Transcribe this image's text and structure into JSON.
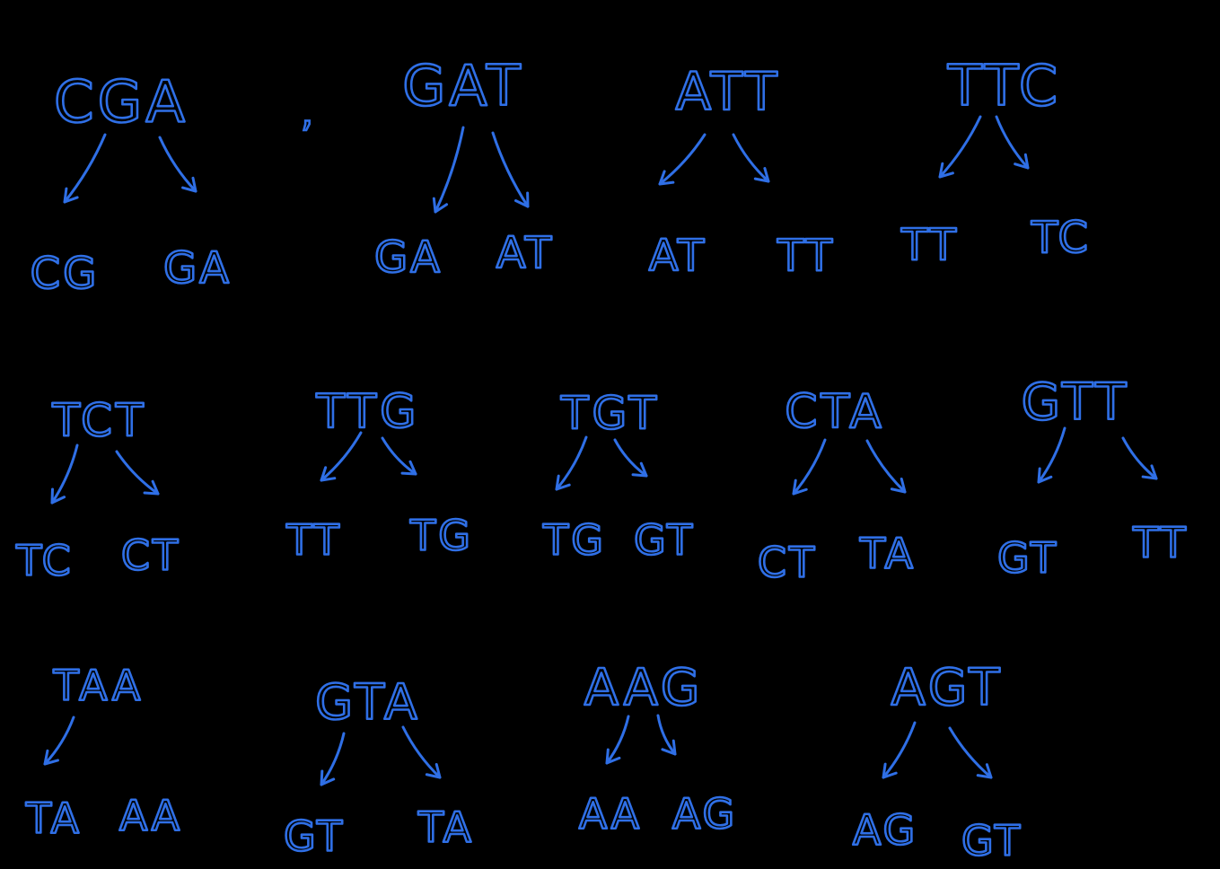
{
  "canvas": {
    "background": "#000000",
    "ink_color": "#2f6fe6"
  },
  "separator": ",",
  "trees": [
    {
      "parent": "CGA",
      "left": "CG",
      "right": "GA",
      "left_arrow": true,
      "right_arrow": true
    },
    {
      "parent": "GAT",
      "left": "GA",
      "right": "AT",
      "left_arrow": true,
      "right_arrow": true
    },
    {
      "parent": "ATT",
      "left": "AT",
      "right": "TT",
      "left_arrow": true,
      "right_arrow": true
    },
    {
      "parent": "TTC",
      "left": "TT",
      "right": "TC",
      "left_arrow": true,
      "right_arrow": true
    },
    {
      "parent": "TCT",
      "left": "TC",
      "right": "CT",
      "left_arrow": true,
      "right_arrow": true
    },
    {
      "parent": "TTG",
      "left": "TT",
      "right": "TG",
      "left_arrow": true,
      "right_arrow": true
    },
    {
      "parent": "TGT",
      "left": "TG",
      "right": "GT",
      "left_arrow": true,
      "right_arrow": true
    },
    {
      "parent": "CTA",
      "left": "CT",
      "right": "TA",
      "left_arrow": true,
      "right_arrow": true
    },
    {
      "parent": "GTT",
      "left": "GT",
      "right": "TT",
      "left_arrow": true,
      "right_arrow": true
    },
    {
      "parent": "TAA",
      "left": "TA",
      "right": "AA",
      "left_arrow": true,
      "right_arrow": false
    },
    {
      "parent": "GTA",
      "left": "GT",
      "right": "TA",
      "left_arrow": true,
      "right_arrow": true
    },
    {
      "parent": "AAG",
      "left": "AA",
      "right": "AG",
      "left_arrow": true,
      "right_arrow": true
    },
    {
      "parent": "AGT",
      "left": "AG",
      "right": "GT",
      "left_arrow": true,
      "right_arrow": true
    }
  ]
}
